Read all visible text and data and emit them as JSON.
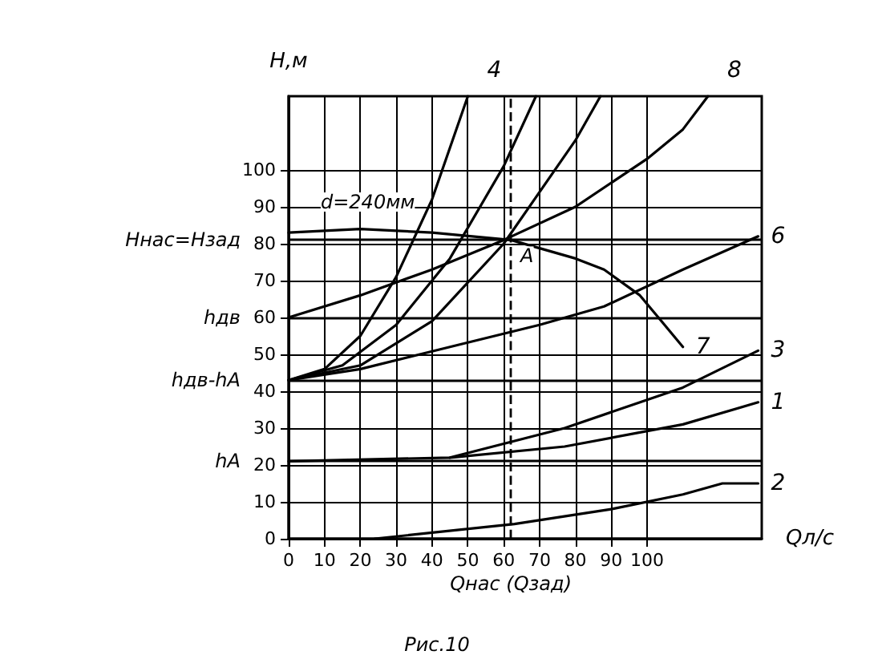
{
  "chart_data": {
    "type": "line",
    "xlabel": "Qл/с",
    "ylabel": "H,м",
    "xlim": [
      0,
      132
    ],
    "ylim": [
      0,
      120
    ],
    "xticks": [
      0,
      10,
      20,
      30,
      40,
      50,
      60,
      70,
      80,
      90,
      100
    ],
    "yticks": [
      0,
      10,
      20,
      30,
      40,
      50,
      60,
      70,
      80,
      90,
      100
    ],
    "grid": true,
    "legend": false,
    "marker": "none",
    "line_style": "solid",
    "series": [
      {
        "name": "1",
        "color": "#000000",
        "x": [
          0,
          45,
          77,
          110,
          131
        ],
        "values": [
          21,
          22,
          25,
          31,
          37
        ]
      },
      {
        "name": "2",
        "color": "#000000",
        "x": [
          24,
          63,
          90,
          110,
          121,
          131
        ],
        "values": [
          0,
          4,
          8,
          12,
          15,
          15
        ]
      },
      {
        "name": "3",
        "color": "#000000",
        "x": [
          45,
          77,
          110,
          131
        ],
        "values": [
          22,
          30,
          41,
          51
        ]
      },
      {
        "name": "4",
        "color": "#000000",
        "x": [
          0,
          10,
          20,
          30,
          40,
          50
        ],
        "values": [
          43,
          46,
          55,
          71,
          92,
          120
        ]
      },
      {
        "color": "#000000",
        "x": [
          0,
          15,
          30,
          45,
          60,
          69
        ],
        "values": [
          43,
          47,
          58,
          76,
          101,
          120
        ]
      },
      {
        "color": "#000000",
        "x": [
          0,
          20,
          40,
          60,
          80,
          87
        ],
        "values": [
          43,
          47,
          59,
          80,
          108,
          120
        ]
      },
      {
        "name": "6",
        "color": "#000000",
        "x": [
          0,
          20,
          45,
          70,
          88,
          110,
          131
        ],
        "values": [
          43,
          46,
          52,
          58,
          63,
          73,
          82
        ]
      },
      {
        "name": "7",
        "color": "#000000",
        "x": [
          0,
          20,
          40,
          62,
          80,
          88,
          98,
          104,
          110
        ],
        "values": [
          83,
          84,
          83,
          81,
          76,
          73,
          66,
          59,
          52
        ]
      },
      {
        "name": "8",
        "color": "#000000",
        "x": [
          0,
          20,
          40,
          60,
          80,
          100,
          110,
          117
        ],
        "values": [
          60,
          66,
          73,
          81,
          90,
          103,
          111,
          120
        ]
      }
    ],
    "ref_lines": [
      {
        "axis": "x",
        "value": 62,
        "label": "Qнас (Qзад)",
        "line_style": "dashed",
        "color": "#000000"
      },
      {
        "axis": "y",
        "value": 81,
        "label": "Hнас=Hзад",
        "color": "#000000"
      },
      {
        "axis": "y",
        "value": 60,
        "label": "hдв",
        "color": "#000000"
      },
      {
        "axis": "y",
        "value": 43,
        "label": "hдв-hА",
        "color": "#000000"
      },
      {
        "axis": "y",
        "value": 21,
        "label": "hА",
        "color": "#000000"
      }
    ],
    "annotations": [
      "d=240мм",
      {
        "text": "A",
        "x": 62,
        "y": 81
      },
      "Рис.10"
    ]
  }
}
